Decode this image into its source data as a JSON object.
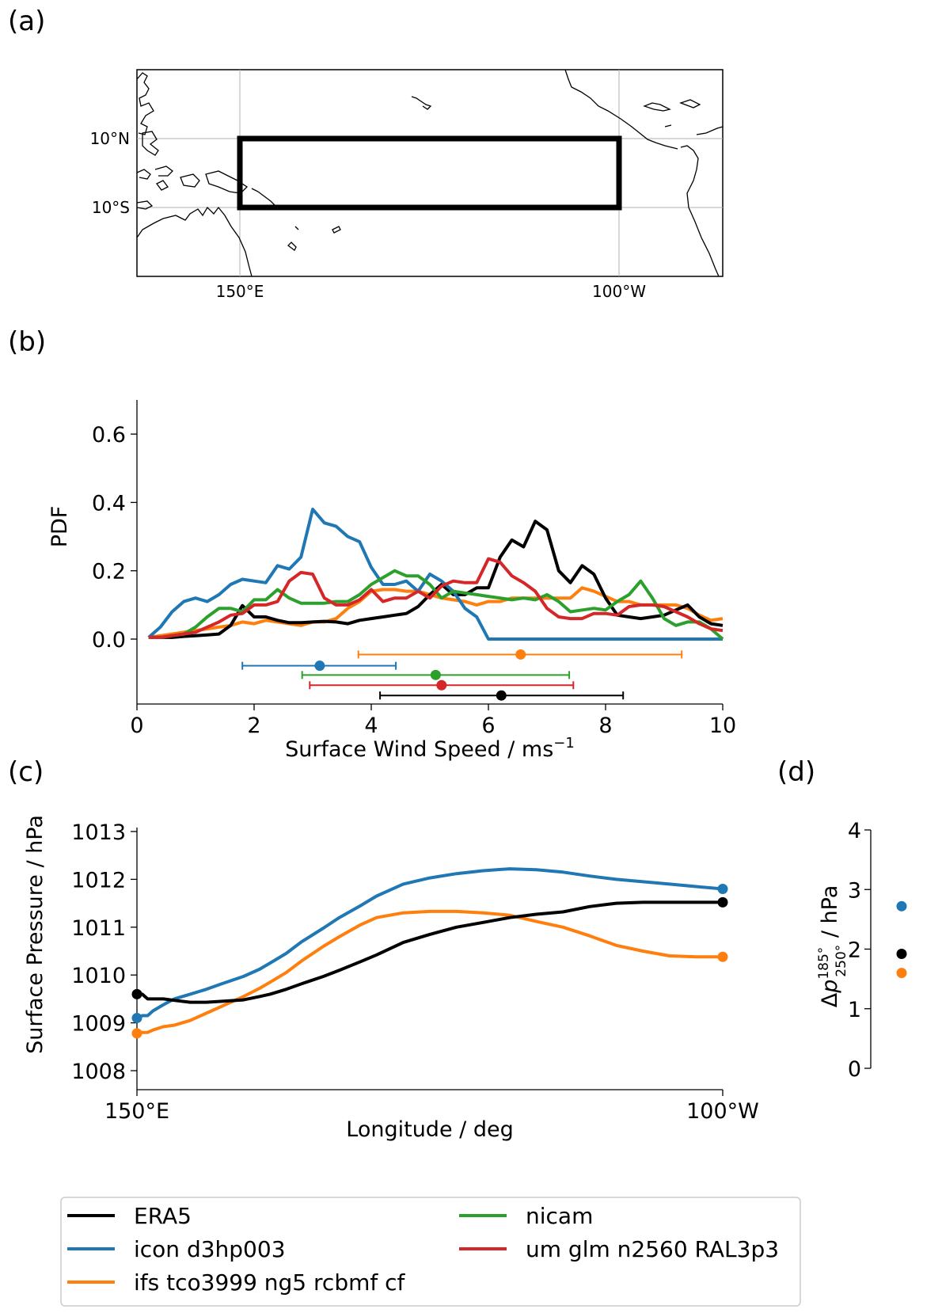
{
  "panels": {
    "a": "(a)",
    "b": "(b)",
    "c": "(c)",
    "d": "(d)"
  },
  "colors": {
    "ERA5": "#000000",
    "icon": "#1f77b4",
    "ifs": "#ff7f0e",
    "nicam": "#2ca02c",
    "um": "#d62728"
  },
  "legend": {
    "items": [
      {
        "label": "ERA5",
        "color": "#000000"
      },
      {
        "label": "icon d3hp003",
        "color": "#1f77b4"
      },
      {
        "label": "ifs tco3999 ng5 rcbmf cf",
        "color": "#ff7f0e"
      },
      {
        "label": "nicam",
        "color": "#2ca02c"
      },
      {
        "label": "um glm n2560 RAL3p3",
        "color": "#d62728"
      }
    ]
  },
  "chart_data": [
    {
      "panel": "(a)",
      "type": "map",
      "xticks": [
        "150°E",
        "100°W"
      ],
      "yticks": [
        "10°N",
        "10°S"
      ],
      "region_box": {
        "lon_min": 150,
        "lon_max": 260,
        "lat_min": -10,
        "lat_max": 10
      },
      "map_extent": {
        "lon_min": 120,
        "lon_max": 290,
        "lat_min": -30,
        "lat_max": 30
      },
      "grid": true
    },
    {
      "panel": "(b)",
      "type": "line",
      "xlabel": "Surface Wind Speed / ms",
      "xlabel_sup": "−1",
      "ylabel": "PDF",
      "xlim": [
        0,
        10
      ],
      "ylim": [
        -0.19,
        0.7
      ],
      "xticks": [
        "0",
        "2",
        "4",
        "6",
        "8",
        "10"
      ],
      "yticks": [
        "0.0",
        "0.2",
        "0.4",
        "0.6"
      ],
      "x": [
        0.2,
        0.4,
        0.6,
        0.8,
        1.0,
        1.2,
        1.4,
        1.6,
        1.8,
        2.0,
        2.2,
        2.4,
        2.6,
        2.8,
        3.0,
        3.2,
        3.4,
        3.6,
        3.8,
        4.0,
        4.2,
        4.4,
        4.6,
        4.8,
        5.0,
        5.2,
        5.4,
        5.6,
        5.8,
        6.0,
        6.2,
        6.4,
        6.6,
        6.8,
        7.0,
        7.2,
        7.4,
        7.6,
        7.8,
        8.0,
        8.2,
        8.4,
        8.6,
        8.8,
        9.0,
        9.2,
        9.4,
        9.6,
        9.8,
        10.0
      ],
      "series": [
        {
          "name": "ERA5",
          "values": [
            0.005,
            0.005,
            0.005,
            0.008,
            0.01,
            0.012,
            0.015,
            0.04,
            0.098,
            0.065,
            0.065,
            0.055,
            0.048,
            0.048,
            0.05,
            0.052,
            0.05,
            0.045,
            0.055,
            0.06,
            0.065,
            0.07,
            0.075,
            0.095,
            0.13,
            0.16,
            0.13,
            0.13,
            0.15,
            0.15,
            0.24,
            0.29,
            0.27,
            0.345,
            0.32,
            0.2,
            0.165,
            0.215,
            0.19,
            0.12,
            0.07,
            0.065,
            0.06,
            0.065,
            0.07,
            0.085,
            0.1,
            0.065,
            0.045,
            0.04
          ]
        },
        {
          "name": "icon d3hp003",
          "values": [
            0.005,
            0.035,
            0.08,
            0.11,
            0.12,
            0.11,
            0.13,
            0.16,
            0.175,
            0.17,
            0.165,
            0.215,
            0.205,
            0.24,
            0.38,
            0.34,
            0.33,
            0.3,
            0.285,
            0.21,
            0.16,
            0.16,
            0.17,
            0.14,
            0.19,
            0.17,
            0.14,
            0.09,
            0.065,
            0.0,
            0.0,
            0.0,
            0.0,
            0.0,
            0.0,
            0.0,
            0.0,
            0.0,
            0.0,
            0.0,
            0.0,
            0.0,
            0.0,
            0.0,
            0.0,
            0.0,
            0.0,
            0.0,
            0.0,
            0.0
          ]
        },
        {
          "name": "ifs tco3999 ng5 rcbmf cf",
          "values": [
            0.005,
            0.01,
            0.015,
            0.02,
            0.025,
            0.03,
            0.035,
            0.04,
            0.05,
            0.045,
            0.055,
            0.05,
            0.045,
            0.04,
            0.05,
            0.05,
            0.06,
            0.09,
            0.11,
            0.14,
            0.145,
            0.145,
            0.14,
            0.14,
            0.13,
            0.12,
            0.115,
            0.11,
            0.1,
            0.11,
            0.11,
            0.12,
            0.12,
            0.12,
            0.12,
            0.12,
            0.12,
            0.15,
            0.14,
            0.125,
            0.11,
            0.11,
            0.1,
            0.1,
            0.1,
            0.1,
            0.09,
            0.07,
            0.055,
            0.06
          ]
        },
        {
          "name": "nicam",
          "values": [
            0.005,
            0.005,
            0.01,
            0.015,
            0.035,
            0.065,
            0.09,
            0.09,
            0.08,
            0.115,
            0.115,
            0.145,
            0.12,
            0.105,
            0.105,
            0.105,
            0.11,
            0.11,
            0.13,
            0.16,
            0.18,
            0.2,
            0.185,
            0.185,
            0.16,
            0.12,
            0.14,
            0.135,
            0.13,
            0.125,
            0.12,
            0.115,
            0.12,
            0.115,
            0.13,
            0.11,
            0.08,
            0.085,
            0.09,
            0.085,
            0.11,
            0.13,
            0.17,
            0.12,
            0.06,
            0.04,
            0.05,
            0.05,
            0.03,
            0.0
          ]
        },
        {
          "name": "um glm n2560 RAL3p3",
          "values": [
            0.005,
            0.005,
            0.01,
            0.015,
            0.02,
            0.035,
            0.05,
            0.07,
            0.075,
            0.1,
            0.1,
            0.11,
            0.17,
            0.195,
            0.19,
            0.12,
            0.1,
            0.1,
            0.115,
            0.145,
            0.11,
            0.12,
            0.12,
            0.14,
            0.12,
            0.155,
            0.17,
            0.165,
            0.165,
            0.235,
            0.225,
            0.185,
            0.165,
            0.14,
            0.09,
            0.065,
            0.06,
            0.06,
            0.075,
            0.075,
            0.07,
            0.095,
            0.1,
            0.1,
            0.095,
            0.08,
            0.065,
            0.045,
            0.03,
            0.025
          ]
        }
      ],
      "errorbars": [
        {
          "name": "ifs tco3999 ng5 rcbmf cf",
          "mean": 6.55,
          "low": 3.78,
          "high": 9.3,
          "y": -0.045
        },
        {
          "name": "icon d3hp003",
          "mean": 3.12,
          "low": 1.8,
          "high": 4.42,
          "y": -0.078
        },
        {
          "name": "nicam",
          "mean": 5.1,
          "low": 2.82,
          "high": 7.38,
          "y": -0.105
        },
        {
          "name": "um glm n2560 RAL3p3",
          "mean": 5.2,
          "low": 2.95,
          "high": 7.45,
          "y": -0.135
        },
        {
          "name": "ERA5",
          "mean": 6.22,
          "low": 4.15,
          "high": 8.3,
          "y": -0.165
        }
      ]
    },
    {
      "panel": "(c)",
      "type": "line",
      "xlabel": "Longitude / deg",
      "ylabel": "Surface Pressure / hPa",
      "xlim": [
        150,
        260
      ],
      "ylim": [
        1007.8,
        1013.0
      ],
      "xticks": [
        "150°E",
        "100°W"
      ],
      "yticks": [
        "1008",
        "1009",
        "1010",
        "1011",
        "1012",
        "1013"
      ],
      "x": [
        150,
        151,
        152,
        153,
        155,
        157,
        160,
        163,
        166,
        170,
        173,
        175,
        178,
        181,
        185,
        188,
        192,
        195,
        200,
        205,
        210,
        215,
        220,
        225,
        230,
        235,
        240,
        245,
        250,
        255,
        260
      ],
      "series": [
        {
          "name": "ERA5",
          "values": [
            1009.6,
            1009.6,
            1009.5,
            1009.5,
            1009.5,
            1009.47,
            1009.43,
            1009.43,
            1009.45,
            1009.48,
            1009.55,
            1009.6,
            1009.7,
            1009.82,
            1009.97,
            1010.1,
            1010.28,
            1010.42,
            1010.68,
            1010.85,
            1011.0,
            1011.1,
            1011.2,
            1011.27,
            1011.32,
            1011.43,
            1011.5,
            1011.52,
            1011.52,
            1011.52,
            1011.52
          ]
        },
        {
          "name": "icon d3hp003",
          "values": [
            1009.1,
            1009.15,
            1009.15,
            1009.25,
            1009.38,
            1009.5,
            1009.6,
            1009.7,
            1009.82,
            1009.97,
            1010.12,
            1010.25,
            1010.45,
            1010.7,
            1010.98,
            1011.2,
            1011.45,
            1011.65,
            1011.9,
            1012.03,
            1012.12,
            1012.18,
            1012.22,
            1012.2,
            1012.15,
            1012.07,
            1012.0,
            1011.95,
            1011.9,
            1011.85,
            1011.8
          ]
        },
        {
          "name": "ifs tco3999 ng5 rcbmf cf",
          "values": [
            1008.78,
            1008.8,
            1008.8,
            1008.85,
            1008.92,
            1008.95,
            1009.05,
            1009.2,
            1009.35,
            1009.55,
            1009.72,
            1009.85,
            1010.05,
            1010.3,
            1010.6,
            1010.8,
            1011.05,
            1011.2,
            1011.3,
            1011.33,
            1011.33,
            1011.3,
            1011.25,
            1011.12,
            1011.0,
            1010.82,
            1010.62,
            1010.5,
            1010.4,
            1010.38,
            1010.38
          ]
        }
      ]
    },
    {
      "panel": "(d)",
      "type": "scatter",
      "ylabel_prefix": "Δ",
      "ylabel_var": "p",
      "ylabel_sup": "185°",
      "ylabel_sub": "250°",
      "ylabel_unit": " / hPa",
      "ylim": [
        0,
        4
      ],
      "yticks": [
        "0",
        "1",
        "2",
        "3",
        "4"
      ],
      "points": [
        {
          "name": "icon d3hp003",
          "value": 2.72
        },
        {
          "name": "ERA5",
          "value": 1.92
        },
        {
          "name": "ifs tco3999 ng5 rcbmf cf",
          "value": 1.6
        }
      ]
    }
  ]
}
